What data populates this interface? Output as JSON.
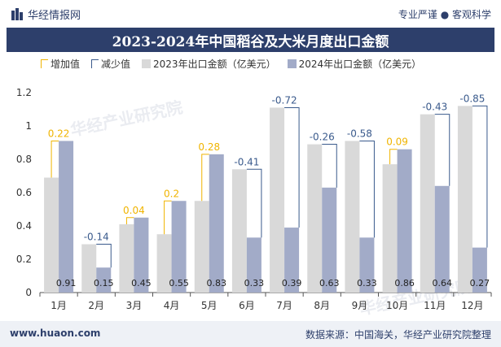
{
  "header": {
    "brand": "华经情报网",
    "tagline": "专业严谨 ● 客观科学"
  },
  "footer": {
    "site": "www.huaon.com",
    "source": "数据来源：中国海关，华经产业研究院整理"
  },
  "watermarks": [
    "华经产业研究院",
    "华经产业研究院"
  ],
  "chart_data": {
    "type": "bar",
    "title": "2023-2024年中国稻谷及大米月度出口金额",
    "xlabel": "",
    "ylabel": "",
    "unit": "亿美元",
    "ylim": [
      0,
      1.2
    ],
    "yticks": [
      0,
      0.2,
      0.4,
      0.6,
      0.8,
      1,
      1.2
    ],
    "grid": false,
    "legend_position": "top",
    "categories": [
      "1月",
      "2月",
      "3月",
      "4月",
      "5月",
      "6月",
      "7月",
      "8月",
      "9月",
      "10月",
      "11月",
      "12月"
    ],
    "series": [
      {
        "name": "2023年出口金额（亿美元）",
        "color": "#d9d9d9",
        "values": [
          0.69,
          0.29,
          0.41,
          0.35,
          0.55,
          0.74,
          1.11,
          0.89,
          0.91,
          0.77,
          1.07,
          1.12
        ]
      },
      {
        "name": "2024年出口金额（亿美元）",
        "color": "#a2abc8",
        "values": [
          0.91,
          0.15,
          0.45,
          0.55,
          0.83,
          0.33,
          0.39,
          0.63,
          0.33,
          0.86,
          0.64,
          0.27
        ]
      }
    ],
    "data_labels_2024": [
      "0.91",
      "0.15",
      "0.45",
      "0.55",
      "0.83",
      "0.33",
      "0.39",
      "0.63",
      "0.33",
      "0.86",
      "0.64",
      "0.27"
    ],
    "change": [
      0.22,
      -0.14,
      0.04,
      0.2,
      0.28,
      -0.41,
      -0.72,
      -0.26,
      -0.58,
      0.09,
      -0.43,
      -0.85
    ],
    "change_labels": [
      "0.22",
      "-0.14",
      "0.04",
      "0.2",
      "0.28",
      "-0.41",
      "-0.72",
      "-0.26",
      "-0.58",
      "0.09",
      "-0.43",
      "-0.85"
    ],
    "change_legend": {
      "increase": "增加值",
      "decrease": "减少值"
    },
    "colors": {
      "increase": "#f0b400",
      "decrease": "#3a5a8c",
      "axis": "#555555"
    }
  }
}
